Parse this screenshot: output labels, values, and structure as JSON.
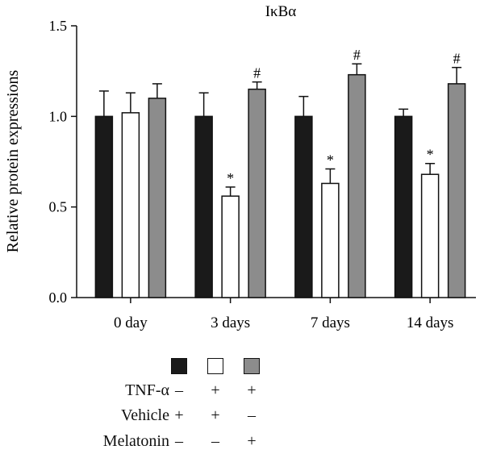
{
  "chart_data": {
    "type": "bar",
    "title": "IκBα",
    "ylabel": "Relative protein expressions",
    "xlabel": "",
    "ylim": [
      0,
      1.5
    ],
    "yticks": [
      "0.0",
      "0.5",
      "1.0",
      "1.5"
    ],
    "categories": [
      "0 day",
      "3 days",
      "7 days",
      "14 days"
    ],
    "series": [
      {
        "color": "#1a1a1a",
        "values": [
          1.0,
          1.0,
          1.0,
          1.0
        ],
        "errors": [
          0.14,
          0.13,
          0.11,
          0.04
        ],
        "markers": [
          "",
          "",
          "",
          ""
        ]
      },
      {
        "color": "#ffffff",
        "values": [
          1.02,
          0.56,
          0.63,
          0.68
        ],
        "errors": [
          0.11,
          0.05,
          0.08,
          0.06
        ],
        "markers": [
          "",
          "*",
          "*",
          "*"
        ]
      },
      {
        "color": "#8c8c8c",
        "values": [
          1.1,
          1.15,
          1.23,
          1.18
        ],
        "errors": [
          0.08,
          0.04,
          0.06,
          0.09
        ],
        "markers": [
          "",
          "#",
          "#",
          "#"
        ]
      }
    ],
    "grid": false
  },
  "legend": {
    "rows": [
      {
        "label": "TNF-α",
        "symbols": [
          "–",
          "+",
          "+"
        ]
      },
      {
        "label": "Vehicle",
        "symbols": [
          "+",
          "+",
          "–"
        ]
      },
      {
        "label": "Melatonin",
        "symbols": [
          "–",
          "–",
          "+"
        ]
      }
    ]
  }
}
